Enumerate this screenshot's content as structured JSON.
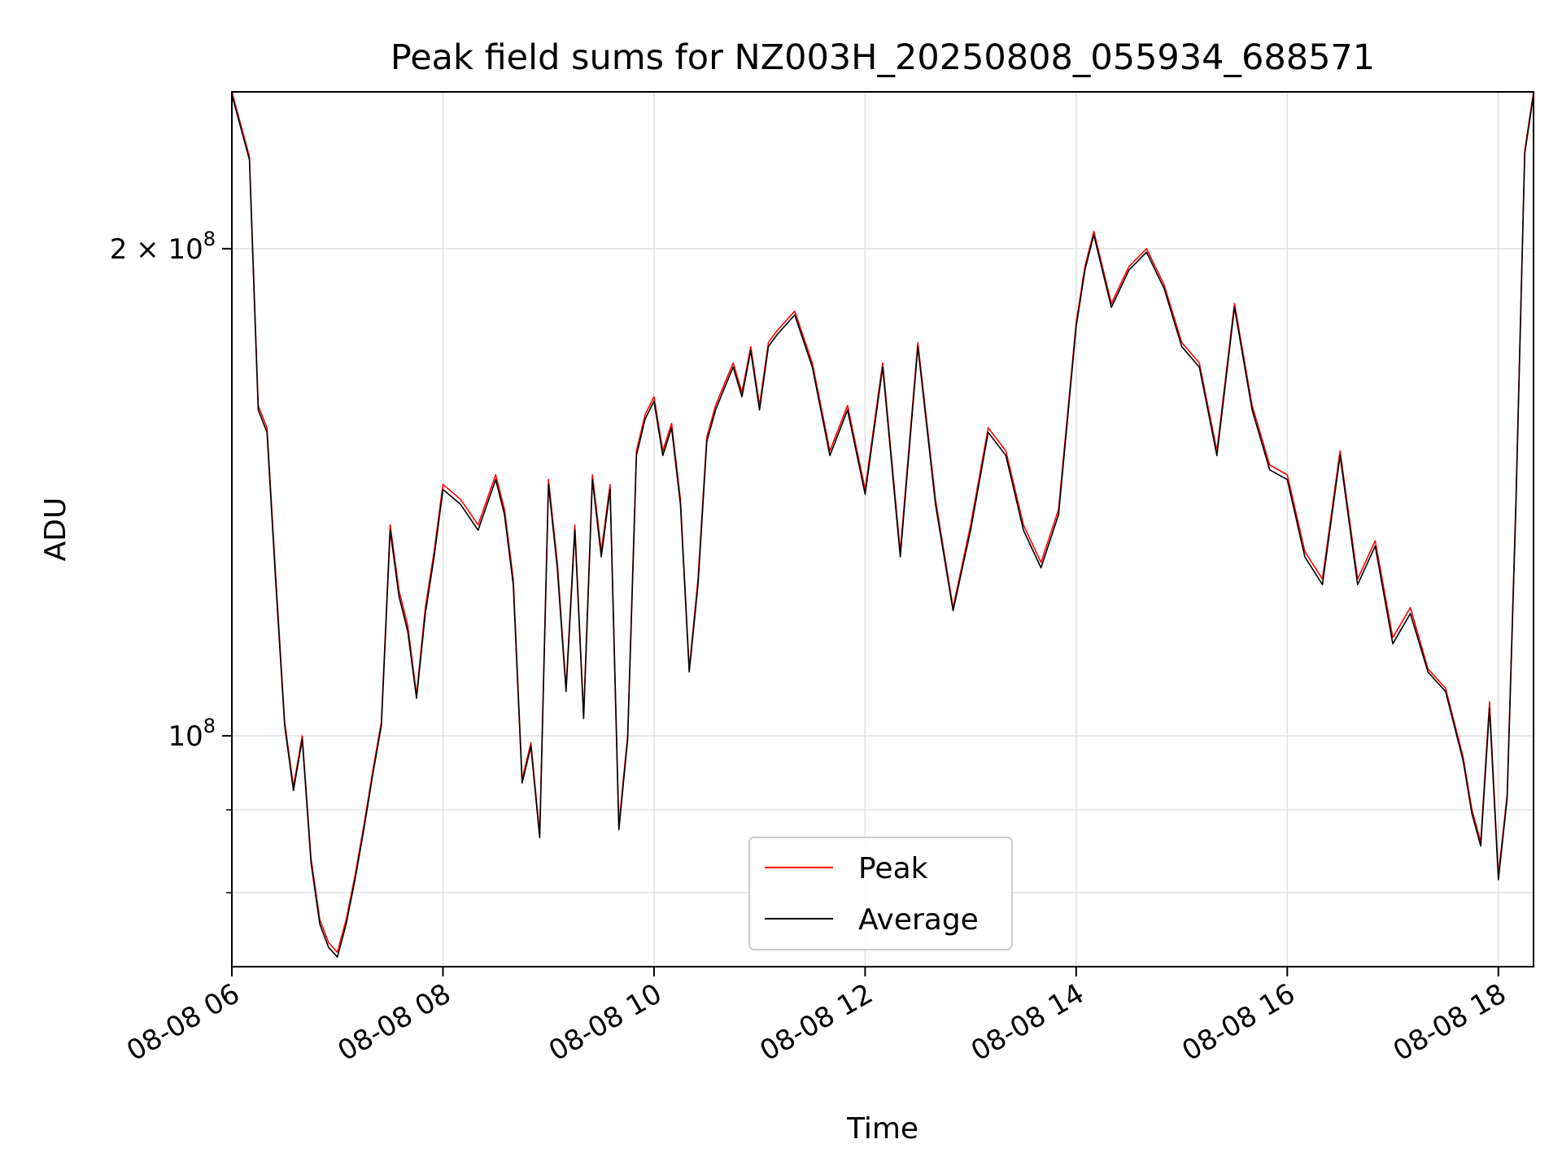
{
  "chart_data": {
    "type": "line",
    "title": "Peak field sums for NZ003H_20250808_055934_688571",
    "xlabel": "Time",
    "ylabel": "ADU",
    "y_scale": "log",
    "grid": true,
    "legend_position": "lower center",
    "xlim": [
      "2025-08-08 06:00",
      "2025-08-08 18:20"
    ],
    "ylim": [
      72000000,
      250000000
    ],
    "x_ticks": [
      {
        "value": "2025-08-08 06:00",
        "label": "08-08 06"
      },
      {
        "value": "2025-08-08 08:00",
        "label": "08-08 08"
      },
      {
        "value": "2025-08-08 10:00",
        "label": "08-08 10"
      },
      {
        "value": "2025-08-08 12:00",
        "label": "08-08 12"
      },
      {
        "value": "2025-08-08 14:00",
        "label": "08-08 14"
      },
      {
        "value": "2025-08-08 16:00",
        "label": "08-08 16"
      },
      {
        "value": "2025-08-08 18:00",
        "label": "08-08 18"
      }
    ],
    "y_major_ticks": [
      {
        "value": 100000000,
        "base": "10",
        "exp": "8",
        "coef": ""
      },
      {
        "value": 200000000,
        "base": "10",
        "exp": "8",
        "coef": "2 × "
      }
    ],
    "y_minor_ticks": [
      60000000,
      70000000,
      80000000,
      90000000,
      300000000
    ],
    "colors": {
      "peak": "#ff0000",
      "average": "#000000",
      "grid": "#e0e0e0"
    },
    "series": [
      {
        "name": "Peak",
        "color": "#ff0000",
        "x": [
          "2025-08-08 06:00",
          "2025-08-08 06:10",
          "2025-08-08 06:15",
          "2025-08-08 06:20",
          "2025-08-08 06:25",
          "2025-08-08 06:30",
          "2025-08-08 06:35",
          "2025-08-08 06:40",
          "2025-08-08 06:45",
          "2025-08-08 06:50",
          "2025-08-08 06:55",
          "2025-08-08 07:00",
          "2025-08-08 07:05",
          "2025-08-08 07:10",
          "2025-08-08 07:15",
          "2025-08-08 07:20",
          "2025-08-08 07:25",
          "2025-08-08 07:30",
          "2025-08-08 07:35",
          "2025-08-08 07:40",
          "2025-08-08 07:45",
          "2025-08-08 07:50",
          "2025-08-08 07:55",
          "2025-08-08 08:00",
          "2025-08-08 08:10",
          "2025-08-08 08:20",
          "2025-08-08 08:30",
          "2025-08-08 08:35",
          "2025-08-08 08:40",
          "2025-08-08 08:45",
          "2025-08-08 08:50",
          "2025-08-08 08:55",
          "2025-08-08 09:00",
          "2025-08-08 09:05",
          "2025-08-08 09:10",
          "2025-08-08 09:15",
          "2025-08-08 09:20",
          "2025-08-08 09:25",
          "2025-08-08 09:30",
          "2025-08-08 09:35",
          "2025-08-08 09:40",
          "2025-08-08 09:45",
          "2025-08-08 09:50",
          "2025-08-08 09:55",
          "2025-08-08 10:00",
          "2025-08-08 10:05",
          "2025-08-08 10:10",
          "2025-08-08 10:15",
          "2025-08-08 10:20",
          "2025-08-08 10:25",
          "2025-08-08 10:30",
          "2025-08-08 10:35",
          "2025-08-08 10:40",
          "2025-08-08 10:45",
          "2025-08-08 10:50",
          "2025-08-08 10:55",
          "2025-08-08 11:00",
          "2025-08-08 11:05",
          "2025-08-08 11:10",
          "2025-08-08 11:20",
          "2025-08-08 11:30",
          "2025-08-08 11:40",
          "2025-08-08 11:50",
          "2025-08-08 12:00",
          "2025-08-08 12:10",
          "2025-08-08 12:20",
          "2025-08-08 12:30",
          "2025-08-08 12:40",
          "2025-08-08 12:50",
          "2025-08-08 13:00",
          "2025-08-08 13:10",
          "2025-08-08 13:20",
          "2025-08-08 13:30",
          "2025-08-08 13:40",
          "2025-08-08 13:50",
          "2025-08-08 14:00",
          "2025-08-08 14:05",
          "2025-08-08 14:10",
          "2025-08-08 14:20",
          "2025-08-08 14:30",
          "2025-08-08 14:40",
          "2025-08-08 14:50",
          "2025-08-08 15:00",
          "2025-08-08 15:10",
          "2025-08-08 15:20",
          "2025-08-08 15:30",
          "2025-08-08 15:40",
          "2025-08-08 15:50",
          "2025-08-08 16:00",
          "2025-08-08 16:10",
          "2025-08-08 16:20",
          "2025-08-08 16:30",
          "2025-08-08 16:40",
          "2025-08-08 16:50",
          "2025-08-08 17:00",
          "2025-08-08 17:10",
          "2025-08-08 17:20",
          "2025-08-08 17:30",
          "2025-08-08 17:40",
          "2025-08-08 17:45",
          "2025-08-08 17:50",
          "2025-08-08 17:55",
          "2025-08-08 18:00",
          "2025-08-08 18:05",
          "2025-08-08 18:10",
          "2025-08-08 18:15",
          "2025-08-08 18:20"
        ],
        "y": [
          250000000,
          228000000,
          160000000,
          155000000,
          125000000,
          102000000,
          93000000,
          100000000,
          84000000,
          77000000,
          74500000,
          73500000,
          77000000,
          82000000,
          88000000,
          95000000,
          102000000,
          135000000,
          123000000,
          117000000,
          106000000,
          120000000,
          130000000,
          143000000,
          140000000,
          135000000,
          145000000,
          138000000,
          125000000,
          94000000,
          99000000,
          87000000,
          144000000,
          128000000,
          107000000,
          135000000,
          103000000,
          145000000,
          130000000,
          143000000,
          88000000,
          100000000,
          150000000,
          158000000,
          162000000,
          150000000,
          156000000,
          140000000,
          110000000,
          125000000,
          153000000,
          160000000,
          165000000,
          170000000,
          163000000,
          174000000,
          160000000,
          175000000,
          178000000,
          183000000,
          170000000,
          150000000,
          160000000,
          142000000,
          170000000,
          130000000,
          175000000,
          140000000,
          120000000,
          135000000,
          155000000,
          150000000,
          135000000,
          128000000,
          138000000,
          180000000,
          195000000,
          205000000,
          185000000,
          195000000,
          200000000,
          190000000,
          175000000,
          170000000,
          150000000,
          185000000,
          160000000,
          147000000,
          145000000,
          130000000,
          125000000,
          150000000,
          125000000,
          132000000,
          115000000,
          120000000,
          110000000,
          107000000,
          97000000,
          90000000,
          86000000,
          105000000,
          82000000,
          92000000,
          140000000,
          230000000,
          250000000
        ]
      },
      {
        "name": "Average",
        "color": "#000000",
        "x": [
          "2025-08-08 06:00",
          "2025-08-08 06:10",
          "2025-08-08 06:15",
          "2025-08-08 06:20",
          "2025-08-08 06:25",
          "2025-08-08 06:30",
          "2025-08-08 06:35",
          "2025-08-08 06:40",
          "2025-08-08 06:45",
          "2025-08-08 06:50",
          "2025-08-08 06:55",
          "2025-08-08 07:00",
          "2025-08-08 07:05",
          "2025-08-08 07:10",
          "2025-08-08 07:15",
          "2025-08-08 07:20",
          "2025-08-08 07:25",
          "2025-08-08 07:30",
          "2025-08-08 07:35",
          "2025-08-08 07:40",
          "2025-08-08 07:45",
          "2025-08-08 07:50",
          "2025-08-08 07:55",
          "2025-08-08 08:00",
          "2025-08-08 08:10",
          "2025-08-08 08:20",
          "2025-08-08 08:30",
          "2025-08-08 08:35",
          "2025-08-08 08:40",
          "2025-08-08 08:45",
          "2025-08-08 08:50",
          "2025-08-08 08:55",
          "2025-08-08 09:00",
          "2025-08-08 09:05",
          "2025-08-08 09:10",
          "2025-08-08 09:15",
          "2025-08-08 09:20",
          "2025-08-08 09:25",
          "2025-08-08 09:30",
          "2025-08-08 09:35",
          "2025-08-08 09:40",
          "2025-08-08 09:45",
          "2025-08-08 09:50",
          "2025-08-08 09:55",
          "2025-08-08 10:00",
          "2025-08-08 10:05",
          "2025-08-08 10:10",
          "2025-08-08 10:15",
          "2025-08-08 10:20",
          "2025-08-08 10:25",
          "2025-08-08 10:30",
          "2025-08-08 10:35",
          "2025-08-08 10:40",
          "2025-08-08 10:45",
          "2025-08-08 10:50",
          "2025-08-08 10:55",
          "2025-08-08 11:00",
          "2025-08-08 11:05",
          "2025-08-08 11:10",
          "2025-08-08 11:20",
          "2025-08-08 11:30",
          "2025-08-08 11:40",
          "2025-08-08 11:50",
          "2025-08-08 12:00",
          "2025-08-08 12:10",
          "2025-08-08 12:20",
          "2025-08-08 12:30",
          "2025-08-08 12:40",
          "2025-08-08 12:50",
          "2025-08-08 13:00",
          "2025-08-08 13:10",
          "2025-08-08 13:20",
          "2025-08-08 13:30",
          "2025-08-08 13:40",
          "2025-08-08 13:50",
          "2025-08-08 14:00",
          "2025-08-08 14:05",
          "2025-08-08 14:10",
          "2025-08-08 14:20",
          "2025-08-08 14:30",
          "2025-08-08 14:40",
          "2025-08-08 14:50",
          "2025-08-08 15:00",
          "2025-08-08 15:10",
          "2025-08-08 15:20",
          "2025-08-08 15:30",
          "2025-08-08 15:40",
          "2025-08-08 15:50",
          "2025-08-08 16:00",
          "2025-08-08 16:10",
          "2025-08-08 16:20",
          "2025-08-08 16:30",
          "2025-08-08 16:40",
          "2025-08-08 16:50",
          "2025-08-08 17:00",
          "2025-08-08 17:10",
          "2025-08-08 17:20",
          "2025-08-08 17:30",
          "2025-08-08 17:40",
          "2025-08-08 17:45",
          "2025-08-08 17:50",
          "2025-08-08 17:55",
          "2025-08-08 18:00",
          "2025-08-08 18:05",
          "2025-08-08 18:10",
          "2025-08-08 18:15",
          "2025-08-08 18:20"
        ],
        "y": [
          249000000,
          227000000,
          159000000,
          154000000,
          124000000,
          101500000,
          92500000,
          99500000,
          83500000,
          76500000,
          74000000,
          73000000,
          76500000,
          81500000,
          87500000,
          94500000,
          101500000,
          134000000,
          122000000,
          116000000,
          105500000,
          119000000,
          129000000,
          142000000,
          139000000,
          134000000,
          144000000,
          137000000,
          124000000,
          93500000,
          98500000,
          86500000,
          143000000,
          127000000,
          106500000,
          134000000,
          102500000,
          144000000,
          129000000,
          142000000,
          87500000,
          99500000,
          149000000,
          157000000,
          161000000,
          149000000,
          155000000,
          139000000,
          109500000,
          124000000,
          152000000,
          159000000,
          164000000,
          169000000,
          162000000,
          173000000,
          159000000,
          174000000,
          177000000,
          182000000,
          169000000,
          149000000,
          159000000,
          141000000,
          169000000,
          129000000,
          174000000,
          139000000,
          119500000,
          134000000,
          154000000,
          149000000,
          134000000,
          127000000,
          137000000,
          179000000,
          194000000,
          204000000,
          184000000,
          194000000,
          199000000,
          189000000,
          174000000,
          169000000,
          149000000,
          184000000,
          159000000,
          146000000,
          144000000,
          129000000,
          124000000,
          149000000,
          124000000,
          131000000,
          114000000,
          119000000,
          109500000,
          106500000,
          96500000,
          89500000,
          85500000,
          104000000,
          81500000,
          91500000,
          139000000,
          229000000,
          249000000
        ]
      }
    ]
  }
}
